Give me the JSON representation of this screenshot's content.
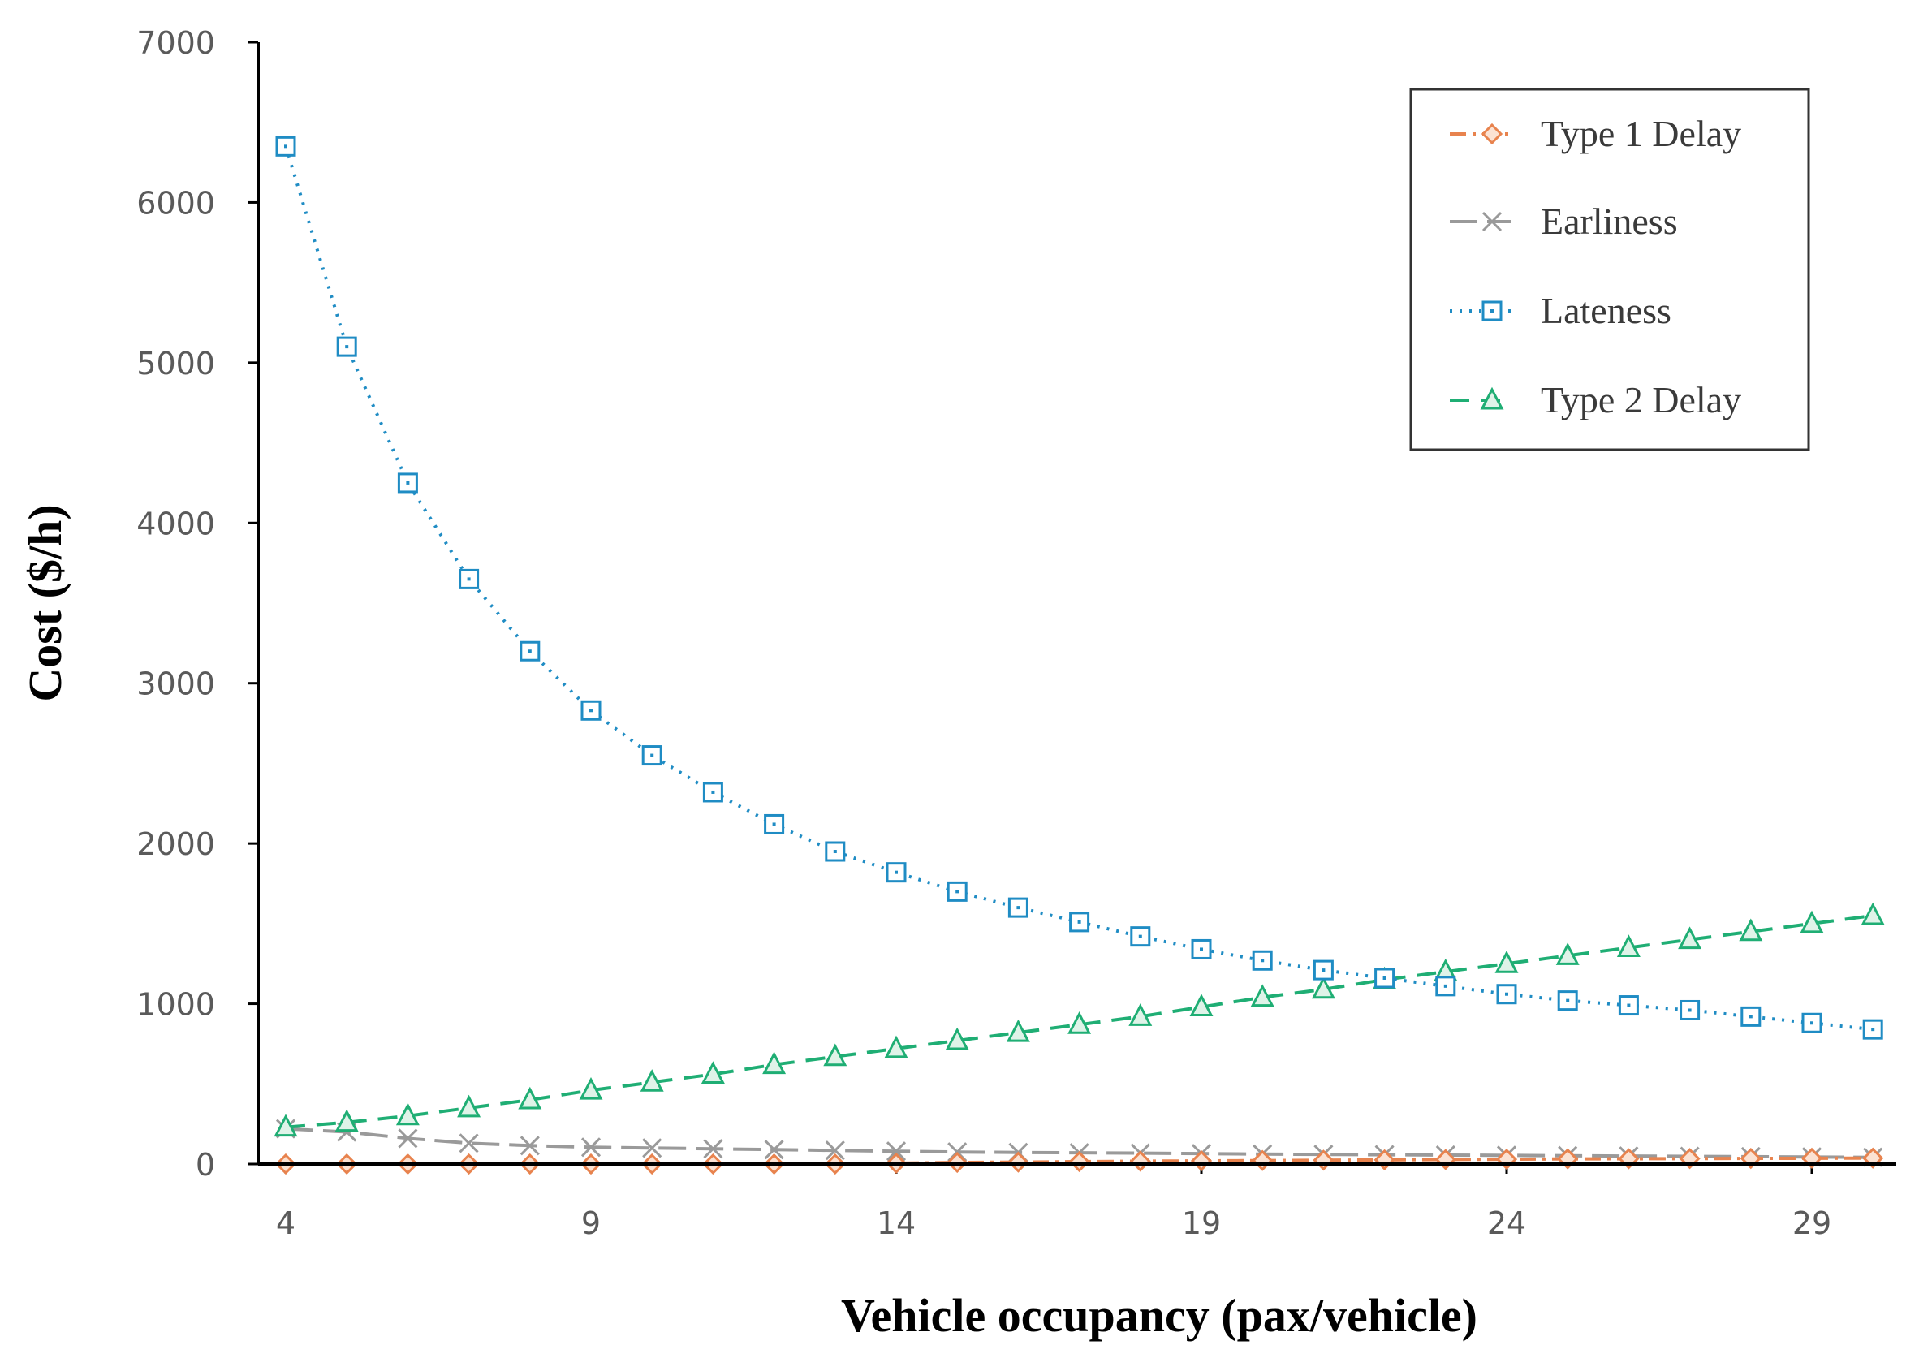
{
  "chart_data": {
    "type": "line",
    "title": "",
    "xlabel": "Vehicle occupancy (pax/vehicle)",
    "ylabel": "Cost ($/h)",
    "xlim": [
      3.5,
      30.5
    ],
    "ylim": [
      0,
      7000
    ],
    "xticks": [
      4,
      9,
      14,
      19,
      24,
      29
    ],
    "yticks": [
      0,
      1000,
      2000,
      3000,
      4000,
      5000,
      6000,
      7000
    ],
    "grid": false,
    "legend_position": "top-right",
    "x": [
      4,
      5,
      6,
      7,
      8,
      9,
      10,
      11,
      12,
      13,
      14,
      15,
      16,
      17,
      18,
      19,
      20,
      21,
      22,
      23,
      24,
      25,
      26,
      27,
      28,
      29,
      30
    ],
    "series": [
      {
        "name": "Type 1 Delay",
        "color": "#e8834e",
        "marker": "diamond",
        "line_style": "dashdot",
        "values": [
          0,
          0,
          0,
          0,
          0,
          0,
          0,
          0,
          0,
          0,
          5,
          10,
          12,
          15,
          18,
          20,
          22,
          24,
          26,
          28,
          30,
          32,
          33,
          34,
          35,
          36,
          37
        ]
      },
      {
        "name": "Earliness",
        "color": "#9a9a9a",
        "marker": "x",
        "line_style": "dashed-long",
        "values": [
          220,
          200,
          160,
          130,
          115,
          105,
          100,
          95,
          90,
          85,
          80,
          75,
          72,
          70,
          68,
          65,
          62,
          60,
          58,
          56,
          54,
          52,
          50,
          48,
          46,
          44,
          42
        ]
      },
      {
        "name": "Lateness",
        "color": "#1f8cc4",
        "marker": "square",
        "line_style": "dotted",
        "values": [
          6350,
          5100,
          4250,
          3650,
          3200,
          2830,
          2550,
          2320,
          2120,
          1950,
          1820,
          1700,
          1600,
          1510,
          1420,
          1340,
          1270,
          1210,
          1160,
          1110,
          1060,
          1020,
          990,
          960,
          920,
          880,
          840
        ]
      },
      {
        "name": "Type 2 Delay",
        "color": "#1fae74",
        "marker": "triangle",
        "line_style": "dashed",
        "values": [
          230,
          260,
          300,
          350,
          400,
          460,
          510,
          560,
          620,
          670,
          720,
          770,
          820,
          870,
          920,
          980,
          1040,
          1090,
          1150,
          1200,
          1250,
          1300,
          1350,
          1400,
          1450,
          1500,
          1550
        ]
      }
    ]
  }
}
